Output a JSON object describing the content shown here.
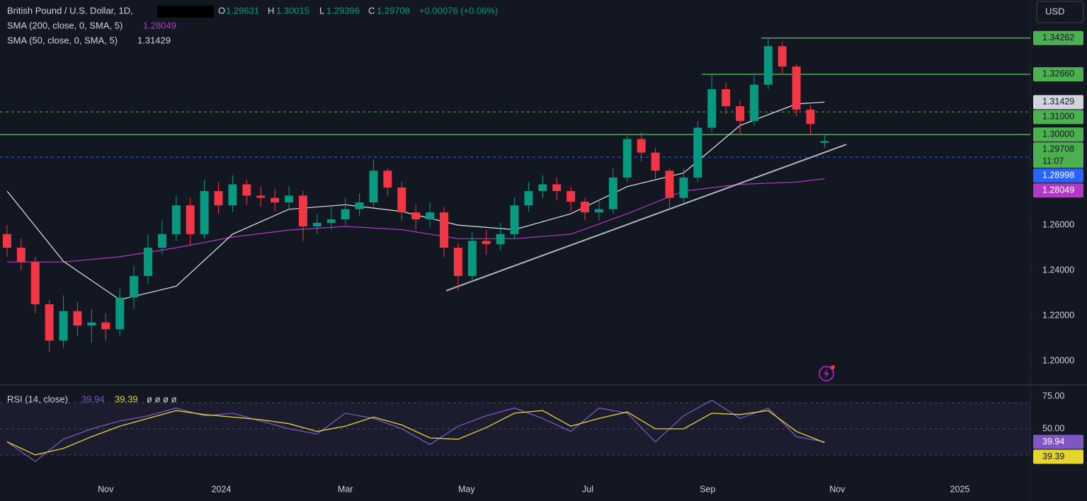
{
  "chart_data": {
    "type": "candlestick",
    "title": "British Pound / U.S. Dollar, 1D,",
    "currency": "USD",
    "change": "+0.00076 (+0.06%)",
    "countdown": "11:07",
    "ohlc_letters": [
      "O",
      "H",
      "L",
      "C"
    ],
    "up_color": "#089981",
    "down_color": "#f23645",
    "xlim": [
      -0.5,
      72.6
    ],
    "xticks": [
      {
        "value": 7.0,
        "label": "Nov"
      },
      {
        "value": 15.2,
        "label": "2024"
      },
      {
        "value": 24.0,
        "label": "Mar"
      },
      {
        "value": 32.6,
        "label": "May"
      },
      {
        "value": 41.2,
        "label": "Jul"
      },
      {
        "value": 49.7,
        "label": "Sep"
      },
      {
        "value": 58.9,
        "label": "Nov"
      },
      {
        "value": 67.6,
        "label": "2025"
      }
    ],
    "ylim": [
      1.1897,
      1.3594
    ],
    "yticks": [
      {
        "value": 1.2,
        "label": "1.20000"
      },
      {
        "value": 1.22,
        "label": "1.22000"
      },
      {
        "value": 1.24,
        "label": "1.24000"
      },
      {
        "value": 1.26,
        "label": "1.26000"
      }
    ],
    "candles": {
      "open": [
        1.256,
        1.25,
        1.2437,
        1.225,
        1.209,
        1.222,
        1.2156,
        1.217,
        1.214,
        1.228,
        1.2375,
        1.25,
        1.256,
        1.2687,
        1.256,
        1.275,
        1.2687,
        1.278,
        1.273,
        1.272,
        1.27,
        1.273,
        1.2594,
        1.261,
        1.2625,
        1.267,
        1.27,
        1.284,
        1.2766,
        1.2656,
        1.2625,
        1.2656,
        1.25,
        1.2375,
        1.253,
        1.2516,
        1.256,
        1.2687,
        1.275,
        1.278,
        1.275,
        1.2703,
        1.2656,
        1.267,
        1.281,
        1.298,
        1.292,
        1.284,
        1.272,
        1.281,
        1.303,
        1.32,
        1.3125,
        1.306,
        1.322,
        1.339,
        1.33,
        1.311,
        1.29631
      ],
      "high": [
        1.26,
        1.254,
        1.246,
        1.227,
        1.229,
        1.226,
        1.223,
        1.221,
        1.232,
        1.242,
        1.256,
        1.262,
        1.273,
        1.272,
        1.28,
        1.279,
        1.282,
        1.28,
        1.277,
        1.276,
        1.277,
        1.275,
        1.265,
        1.268,
        1.272,
        1.274,
        1.289,
        1.285,
        1.279,
        1.269,
        1.27,
        1.268,
        1.252,
        1.257,
        1.258,
        1.261,
        1.272,
        1.279,
        1.282,
        1.281,
        1.277,
        1.272,
        1.271,
        1.285,
        1.3,
        1.301,
        1.294,
        1.285,
        1.285,
        1.306,
        1.3266,
        1.323,
        1.315,
        1.326,
        1.34262,
        1.341,
        1.331,
        1.313,
        1.30015
      ],
      "low": [
        1.246,
        1.24,
        1.221,
        1.204,
        1.206,
        1.211,
        1.208,
        1.209,
        1.211,
        1.223,
        1.234,
        1.247,
        1.253,
        1.251,
        1.254,
        1.265,
        1.266,
        1.269,
        1.268,
        1.266,
        1.267,
        1.253,
        1.256,
        1.258,
        1.26,
        1.264,
        1.268,
        1.273,
        1.262,
        1.258,
        1.259,
        1.246,
        1.231,
        1.235,
        1.247,
        1.249,
        1.254,
        1.266,
        1.272,
        1.271,
        1.266,
        1.262,
        1.262,
        1.265,
        1.279,
        1.288,
        1.28,
        1.267,
        1.27,
        1.279,
        1.301,
        1.309,
        1.3,
        1.304,
        1.32,
        1.327,
        1.308,
        1.3,
        1.29396
      ],
      "close": [
        1.25,
        1.2437,
        1.225,
        1.209,
        1.222,
        1.2156,
        1.217,
        1.214,
        1.228,
        1.2375,
        1.25,
        1.256,
        1.2687,
        1.256,
        1.275,
        1.2687,
        1.278,
        1.273,
        1.272,
        1.27,
        1.273,
        1.2594,
        1.261,
        1.2625,
        1.267,
        1.27,
        1.284,
        1.2766,
        1.2656,
        1.2625,
        1.2656,
        1.25,
        1.2375,
        1.253,
        1.2516,
        1.256,
        1.2687,
        1.275,
        1.278,
        1.275,
        1.2703,
        1.2656,
        1.267,
        1.281,
        1.298,
        1.292,
        1.284,
        1.272,
        1.281,
        1.303,
        1.32,
        1.3125,
        1.306,
        1.322,
        1.339,
        1.33,
        1.311,
        1.3047,
        1.29708
      ]
    },
    "series": [
      {
        "name": "SMA (200, close, 0, SMA, 5)",
        "color": "#b03ac6",
        "x": [
          0,
          4,
          8,
          12,
          16,
          20,
          24,
          28,
          32,
          36,
          40,
          44,
          48,
          52,
          56,
          58
        ],
        "values": [
          1.2437,
          1.2437,
          1.246,
          1.25,
          1.2547,
          1.2578,
          1.2594,
          1.258,
          1.254,
          1.254,
          1.256,
          1.265,
          1.275,
          1.278,
          1.279,
          1.28049
        ]
      },
      {
        "name": "SMA (50, close, 0, SMA, 5)",
        "color": "#e0e3eb",
        "x": [
          0,
          4,
          8,
          12,
          16,
          20,
          24,
          28,
          32,
          36,
          40,
          44,
          48,
          52,
          56,
          58
        ],
        "values": [
          1.275,
          1.244,
          1.227,
          1.233,
          1.256,
          1.267,
          1.269,
          1.266,
          1.26,
          1.258,
          1.265,
          1.277,
          1.283,
          1.304,
          1.3135,
          1.31429
        ]
      }
    ],
    "levels": [
      {
        "value": 1.34262,
        "x": 53.5,
        "color": "#4caf50",
        "style": "solid"
      },
      {
        "value": 1.3266,
        "label": "1.32660",
        "x": 49.3,
        "color": "#4caf50",
        "style": "solid"
      },
      {
        "value": 1.31,
        "label": "1.31000",
        "color": "#4caf50",
        "style": "dashed"
      },
      {
        "value": 1.3,
        "label": "1.30000",
        "color": "#4caf50",
        "style": "solid"
      },
      {
        "value": 1.28998,
        "color": "#2962ff",
        "style": "dashed"
      }
    ],
    "trendline": {
      "color": "#b2b5be",
      "x": [
        31.16,
        59.55
      ],
      "values": [
        1.231,
        1.2956
      ]
    },
    "rsi": {
      "title": "RSI (14, close)",
      "extra": "ø ø ø ø",
      "ylim": [
        9.8,
        83.15
      ],
      "yticks": [
        {
          "value": 75,
          "label": "75.00"
        },
        {
          "value": 50,
          "label": "50.00"
        }
      ],
      "bands": [
        70,
        50,
        30
      ],
      "series": [
        {
          "color": "#7e57c2",
          "x": [
            0,
            2,
            4,
            6,
            8,
            10,
            12,
            14,
            16,
            18,
            20,
            22,
            24,
            26,
            28,
            30,
            32,
            34,
            36,
            38,
            40,
            42,
            44,
            46,
            48,
            50,
            52,
            54,
            56,
            58
          ],
          "values": [
            40,
            25,
            42,
            50,
            56,
            60,
            66,
            60,
            62,
            56,
            50,
            46,
            62,
            58,
            50,
            38,
            52,
            60,
            66,
            58,
            48,
            66,
            62,
            40,
            60,
            72,
            58,
            66,
            44,
            39.94
          ]
        },
        {
          "color": "#e6d52f",
          "x": [
            0,
            2,
            4,
            6,
            8,
            10,
            12,
            14,
            16,
            18,
            20,
            22,
            24,
            26,
            28,
            30,
            32,
            34,
            36,
            38,
            40,
            42,
            44,
            46,
            48,
            50,
            52,
            54,
            56,
            58
          ],
          "values": [
            40,
            30,
            35,
            44,
            52,
            58,
            64,
            61,
            59,
            57,
            54,
            48,
            52,
            59,
            53,
            43,
            42,
            51,
            62,
            64,
            52,
            58,
            63,
            50,
            50,
            62,
            61,
            64,
            48,
            39.39
          ]
        }
      ]
    }
  }
}
